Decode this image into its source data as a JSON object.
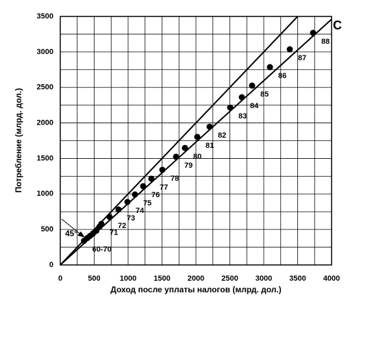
{
  "chart_data": {
    "type": "scatter",
    "x_label": "Доход после уплаты налогов (млрд. дол.)",
    "y_label": "Потребление (млрд. дол.)",
    "xlim": [
      0,
      4000
    ],
    "ylim": [
      0,
      3500
    ],
    "xticks": [
      0,
      500,
      1000,
      1500,
      2000,
      2500,
      3000,
      3500,
      4000
    ],
    "yticks": [
      0,
      500,
      1000,
      1500,
      2000,
      2500,
      3000,
      3500
    ],
    "x_minor_grid": [
      250,
      750,
      1250,
      1750,
      2250,
      2750,
      3250,
      3750
    ],
    "y_minor_grid": [
      250,
      750,
      1250,
      1750,
      2250,
      2750,
      3250
    ],
    "grid": true,
    "color": "#000000",
    "x": [
      350,
      400,
      440,
      480,
      530,
      580,
      606,
      727,
      859,
      990,
      1101,
      1222,
      1343,
      1505,
      1707,
      1838,
      2020,
      2202,
      2505,
      2677,
      2828,
      3091,
      3384,
      3727
    ],
    "y": [
      340,
      380,
      410,
      440,
      480,
      540,
      578,
      675,
      781,
      887,
      993,
      1109,
      1215,
      1340,
      1523,
      1648,
      1803,
      1947,
      2217,
      2362,
      2526,
      2786,
      3037,
      3268
    ],
    "labels": [
      "60-70",
      null,
      null,
      null,
      null,
      null,
      "71",
      "72",
      "73",
      "74",
      "75",
      "76",
      "77",
      "78",
      "79",
      "80",
      "81",
      "82",
      "83",
      "84",
      "85",
      "86",
      "87",
      "88"
    ],
    "lines": [
      {
        "label": "C",
        "x": [
          0,
          4000
        ],
        "y": [
          0,
          3460
        ]
      },
      {
        "label": "45°",
        "x": [
          0,
          3500
        ],
        "y": [
          0,
          3500
        ]
      }
    ]
  }
}
